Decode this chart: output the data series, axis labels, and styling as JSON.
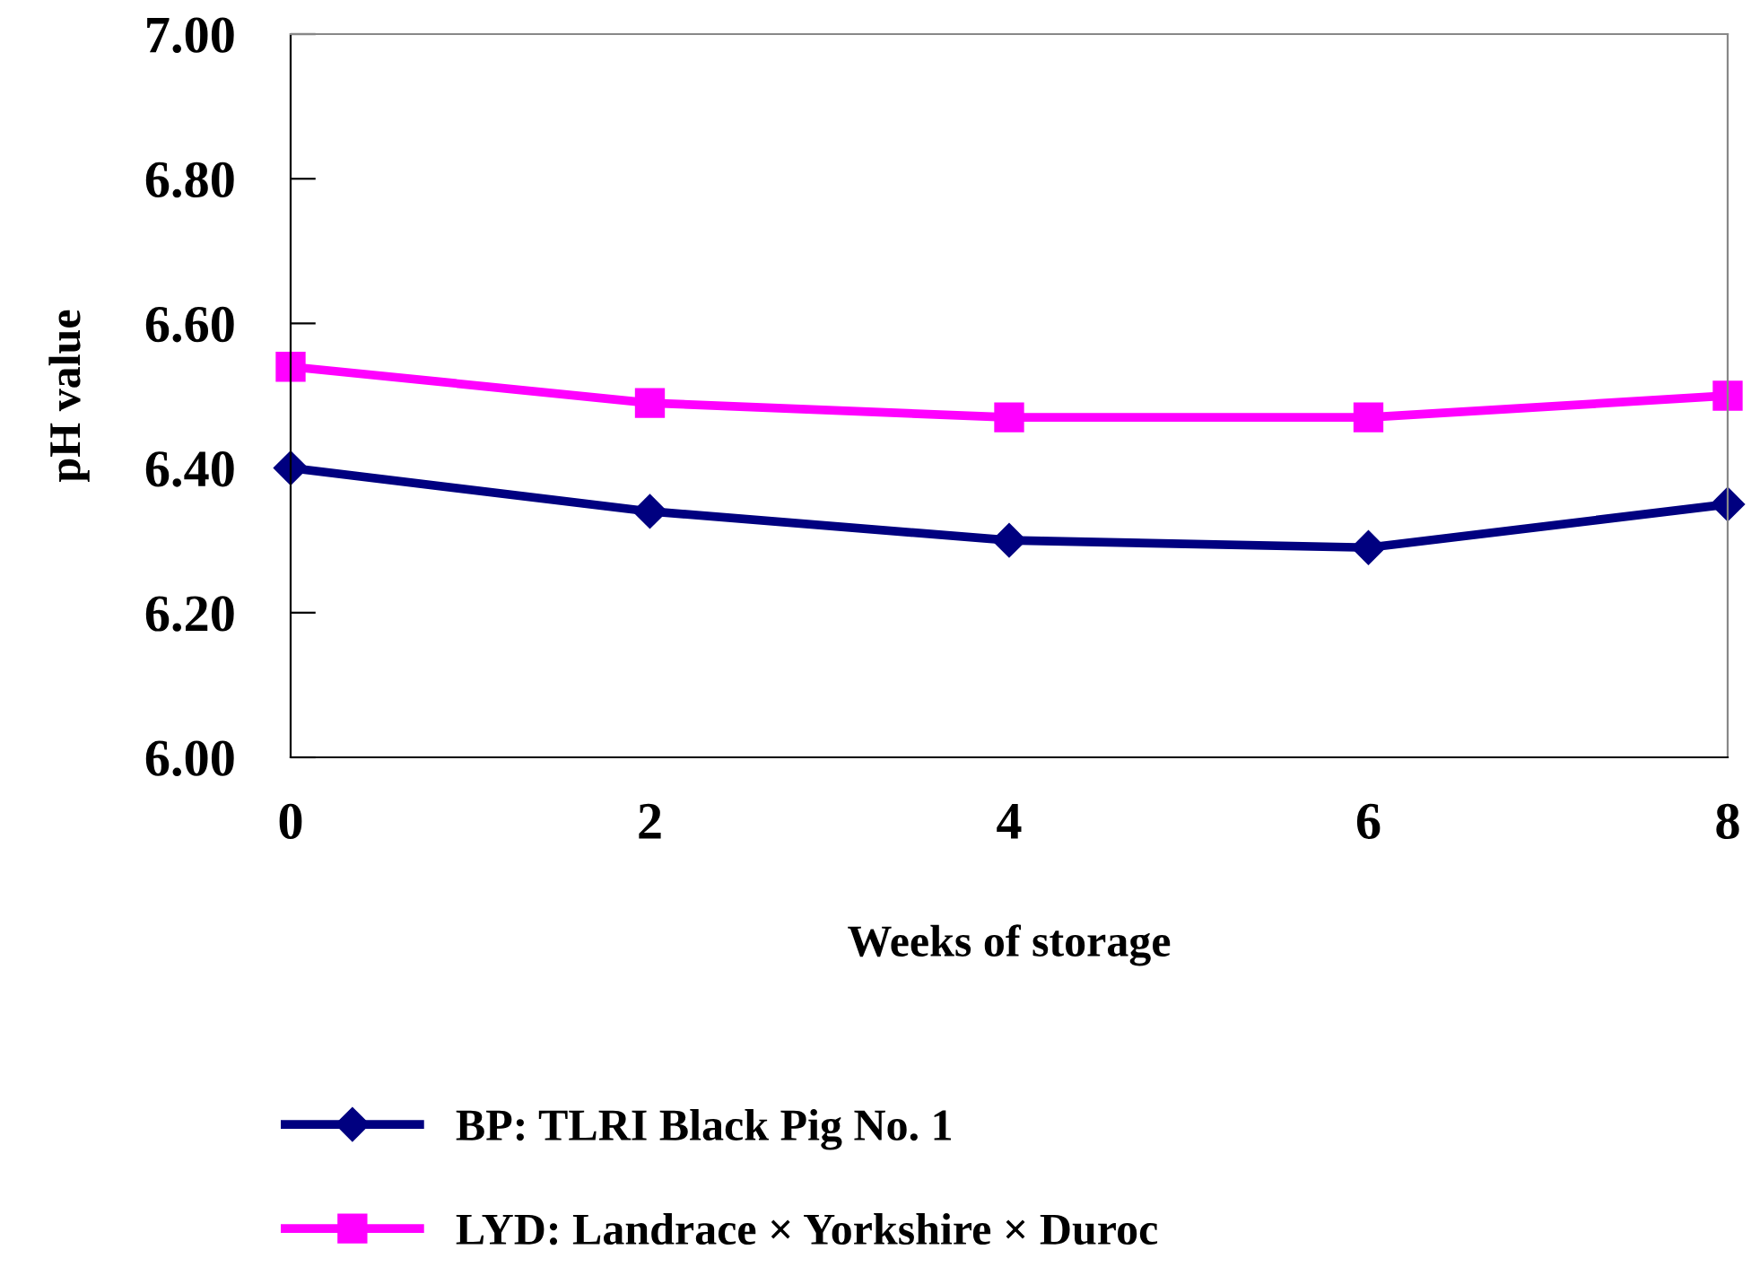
{
  "chart_data": {
    "type": "line",
    "xlabel": "Weeks of storage",
    "ylabel": "pH value",
    "x": [
      0,
      2,
      4,
      6,
      8
    ],
    "xlim": [
      0,
      8
    ],
    "xticks": [
      0,
      2,
      4,
      6,
      8
    ],
    "ylim": [
      6.0,
      7.0
    ],
    "yticks": [
      {
        "value": 6.0,
        "label": "6.00"
      },
      {
        "value": 6.2,
        "label": "6.20"
      },
      {
        "value": 6.4,
        "label": "6.40"
      },
      {
        "value": 6.6,
        "label": "6.60"
      },
      {
        "value": 6.8,
        "label": "6.80"
      },
      {
        "value": 7.0,
        "label": "7.00"
      }
    ],
    "series": [
      {
        "name": "BP: TLRI Black Pig No. 1",
        "color": "#000080",
        "marker": "diamond",
        "values": [
          6.4,
          6.34,
          6.3,
          6.29,
          6.35
        ]
      },
      {
        "name": "LYD: Landrace × Yorkshire × Duroc",
        "color": "#ff00ff",
        "marker": "square",
        "values": [
          6.54,
          6.49,
          6.47,
          6.47,
          6.5
        ]
      }
    ],
    "grid": false,
    "legend": "bottom",
    "line_style": "solid"
  }
}
